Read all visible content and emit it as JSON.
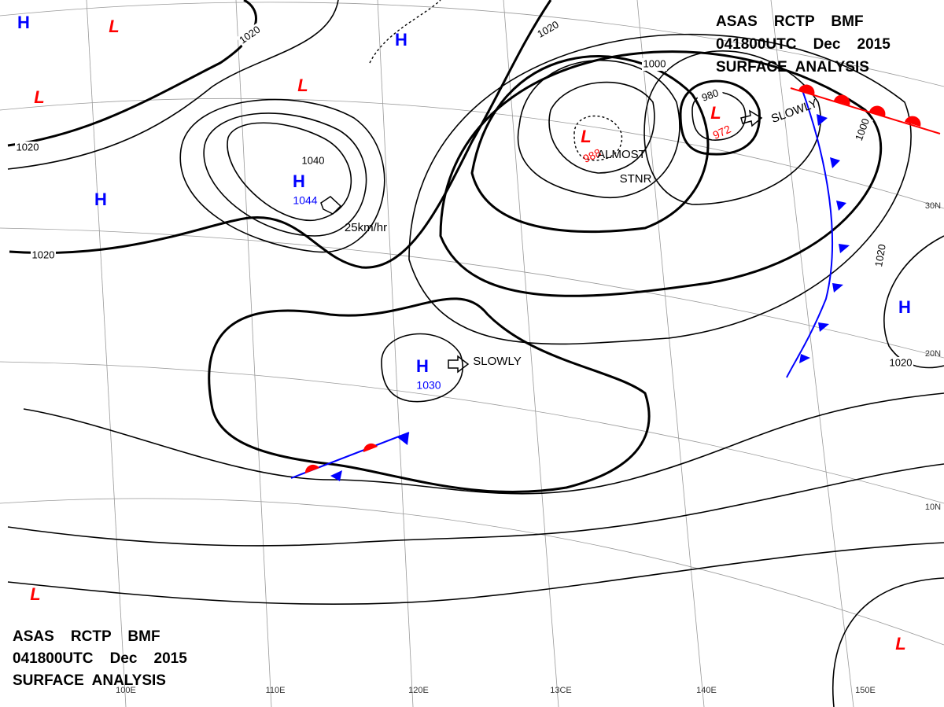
{
  "header": {
    "line1": "ASAS    RCTP    BMF",
    "line2": "041800UTC    Dec    2015",
    "line3": "SURFACE  ANALYSIS"
  },
  "systems": [
    {
      "type": "H"
    },
    {
      "type": "L"
    },
    {
      "type": "L"
    },
    {
      "type": "L"
    },
    {
      "type": "H"
    },
    {
      "type": "H",
      "pressure": 1044
    },
    {
      "type": "H"
    },
    {
      "type": "H",
      "pressure": 1030
    },
    {
      "type": "L",
      "pressure": 988
    },
    {
      "type": "L",
      "pressure": 972
    },
    {
      "type": "H"
    },
    {
      "type": "L"
    },
    {
      "type": "L"
    }
  ],
  "isobar_labels": [
    1020,
    1020,
    1020,
    1040,
    1020,
    1000,
    980,
    1000,
    1020,
    1020
  ],
  "annotations": [
    "25km/hr",
    "SLOWLY",
    "ALMOST",
    "STNR",
    "SLOWLY"
  ],
  "longitudes": [
    "100E",
    "110E",
    "120E",
    "13CE",
    "140E",
    "150E"
  ],
  "latitudes": [
    "30N",
    "20N",
    "10N"
  ]
}
